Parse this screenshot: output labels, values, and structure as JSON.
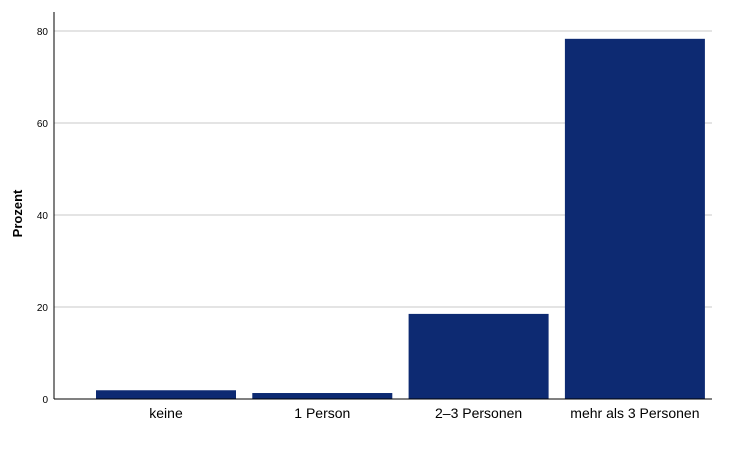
{
  "chart_data": {
    "type": "bar",
    "title": "",
    "xlabel": "",
    "ylabel": "Prozent",
    "categories": [
      "keine",
      "1 Person",
      "2–3 Personen",
      "mehr als 3 Personen"
    ],
    "values": [
      1.9,
      1.3,
      18.5,
      78.3
    ],
    "ylim": [
      0,
      80
    ],
    "yticks": [
      0,
      20,
      40,
      60,
      80
    ],
    "grid": true,
    "bar_color": "#0d2a72"
  }
}
